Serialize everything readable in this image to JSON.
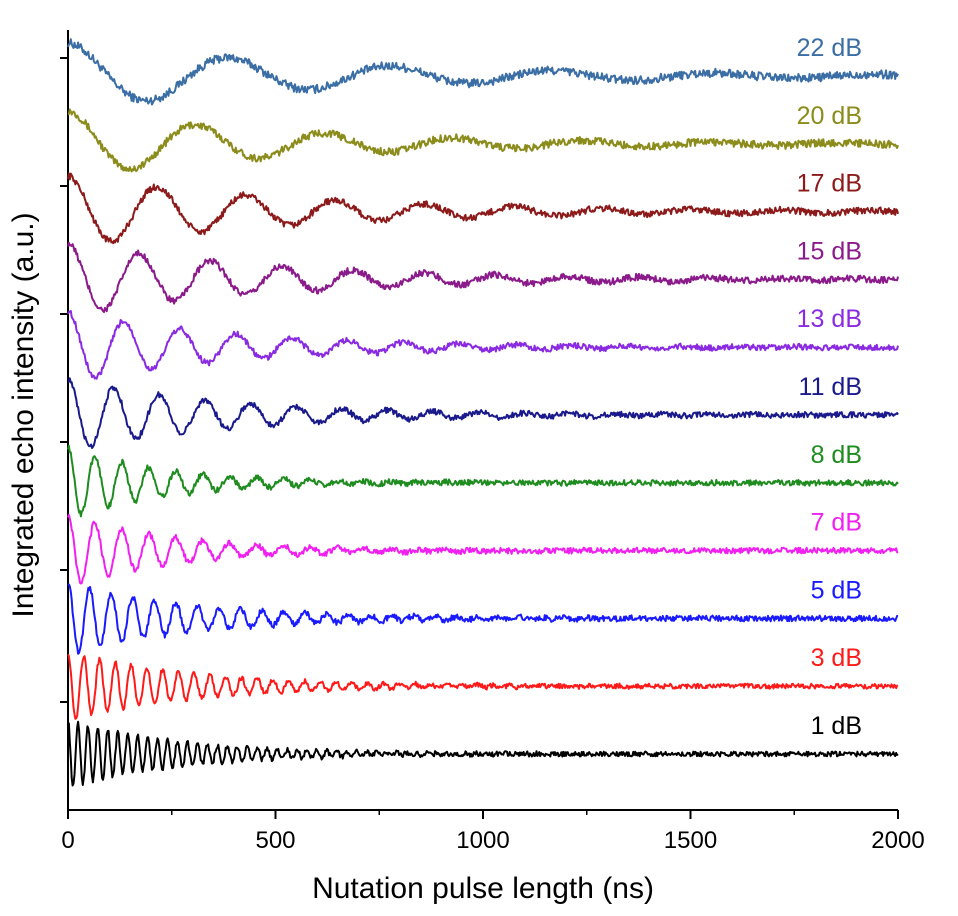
{
  "chart_data": {
    "type": "line",
    "title": "",
    "xlabel": "Nutation pulse length (ns)",
    "ylabel": "Integrated echo intensity (a.u.)",
    "xlim": [
      0,
      2000
    ],
    "x_ticks": [
      "0",
      "500",
      "1000",
      "1500",
      "2000"
    ],
    "y_ticks_labeled": false,
    "grid": false,
    "legend": "none (inline series labels at right)",
    "series": [
      {
        "name": "22 dB",
        "color": "#3b6ea5",
        "period_ns": 390,
        "decay_ns": 650,
        "amplitude": 0.35,
        "baseline_level": 10,
        "noise": 0.045
      },
      {
        "name": "20 dB",
        "color": "#8c8c1c",
        "period_ns": 310,
        "decay_ns": 550,
        "amplitude": 0.35,
        "baseline_level": 9,
        "noise": 0.04
      },
      {
        "name": "17 dB",
        "color": "#8c1a1a",
        "period_ns": 215,
        "decay_ns": 550,
        "amplitude": 0.38,
        "baseline_level": 8,
        "noise": 0.035
      },
      {
        "name": "15 dB",
        "color": "#8b1a8b",
        "period_ns": 172,
        "decay_ns": 500,
        "amplitude": 0.38,
        "baseline_level": 7,
        "noise": 0.035
      },
      {
        "name": "13 dB",
        "color": "#8a2be2",
        "period_ns": 135,
        "decay_ns": 400,
        "amplitude": 0.38,
        "baseline_level": 6,
        "noise": 0.03
      },
      {
        "name": "11 dB",
        "color": "#1a1a8c",
        "period_ns": 110,
        "decay_ns": 380,
        "amplitude": 0.38,
        "baseline_level": 5,
        "noise": 0.03
      },
      {
        "name": "8 dB",
        "color": "#1f8c1f",
        "period_ns": 65,
        "decay_ns": 230,
        "amplitude": 0.38,
        "baseline_level": 4,
        "noise": 0.03
      },
      {
        "name": "7 dB",
        "color": "#f020f0",
        "period_ns": 65,
        "decay_ns": 250,
        "amplitude": 0.38,
        "baseline_level": 3,
        "noise": 0.03
      },
      {
        "name": "5 dB",
        "color": "#1a1aff",
        "period_ns": 52,
        "decay_ns": 300,
        "amplitude": 0.38,
        "baseline_level": 2,
        "noise": 0.03
      },
      {
        "name": "3 dB",
        "color": "#ff1a1a",
        "period_ns": 38,
        "decay_ns": 300,
        "amplitude": 0.36,
        "baseline_level": 1,
        "noise": 0.025
      },
      {
        "name": "1 dB",
        "color": "#000000",
        "period_ns": 24,
        "decay_ns": 260,
        "amplitude": 0.36,
        "baseline_level": 0,
        "noise": 0.025
      }
    ]
  }
}
